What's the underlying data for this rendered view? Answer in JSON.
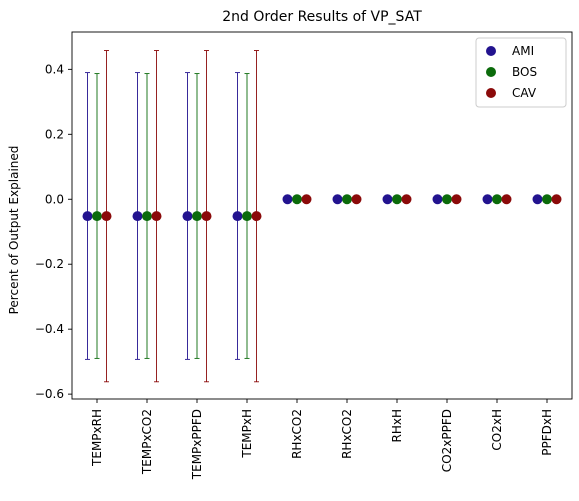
{
  "chart_data": {
    "type": "scatter",
    "title": "2nd Order Results of VP_SAT",
    "xlabel": "",
    "ylabel": "Percent of Output Explained",
    "categories": [
      "TEMPxRH",
      "TEMPxCO2",
      "TEMPxPPFD",
      "TEMPxH",
      "RHxCO2",
      "RHxCO2",
      "RHxH",
      "CO2xPPFD",
      "CO2xH",
      "PPFDxH"
    ],
    "ylim": [
      -0.615,
      0.515
    ],
    "yticks": [
      -0.6,
      -0.4,
      -0.2,
      0.0,
      0.2,
      0.4
    ],
    "ytick_labels": [
      "−0.6",
      "−0.4",
      "−0.2",
      "0.0",
      "0.2",
      "0.4"
    ],
    "grid": false,
    "legend_position": "top-right",
    "series": [
      {
        "name": "AMI",
        "color": "#23138f",
        "values": [
          -0.052,
          -0.052,
          -0.052,
          -0.052,
          0.0,
          0.0,
          0.0,
          0.0,
          0.0,
          0.0
        ],
        "error_lower": [
          -0.493,
          -0.493,
          -0.493,
          -0.493,
          null,
          null,
          null,
          null,
          null,
          null
        ],
        "error_upper": [
          0.39,
          0.39,
          0.39,
          0.39,
          null,
          null,
          null,
          null,
          null,
          null
        ]
      },
      {
        "name": "BOS",
        "color": "#0b6b0b",
        "values": [
          -0.052,
          -0.052,
          -0.052,
          -0.052,
          0.0,
          0.0,
          0.0,
          0.0,
          0.0,
          0.0
        ],
        "error_lower": [
          -0.49,
          -0.49,
          -0.49,
          -0.49,
          null,
          null,
          null,
          null,
          null,
          null
        ],
        "error_upper": [
          0.387,
          0.387,
          0.387,
          0.387,
          null,
          null,
          null,
          null,
          null,
          null
        ]
      },
      {
        "name": "CAV",
        "color": "#8b0a0a",
        "values": [
          -0.052,
          -0.052,
          -0.052,
          -0.052,
          0.0,
          0.0,
          0.0,
          0.0,
          0.0,
          0.0
        ],
        "error_lower": [
          -0.562,
          -0.562,
          -0.562,
          -0.562,
          null,
          null,
          null,
          null,
          null,
          null
        ],
        "error_upper": [
          0.458,
          0.458,
          0.458,
          0.458,
          null,
          null,
          null,
          null,
          null,
          null
        ]
      }
    ]
  }
}
